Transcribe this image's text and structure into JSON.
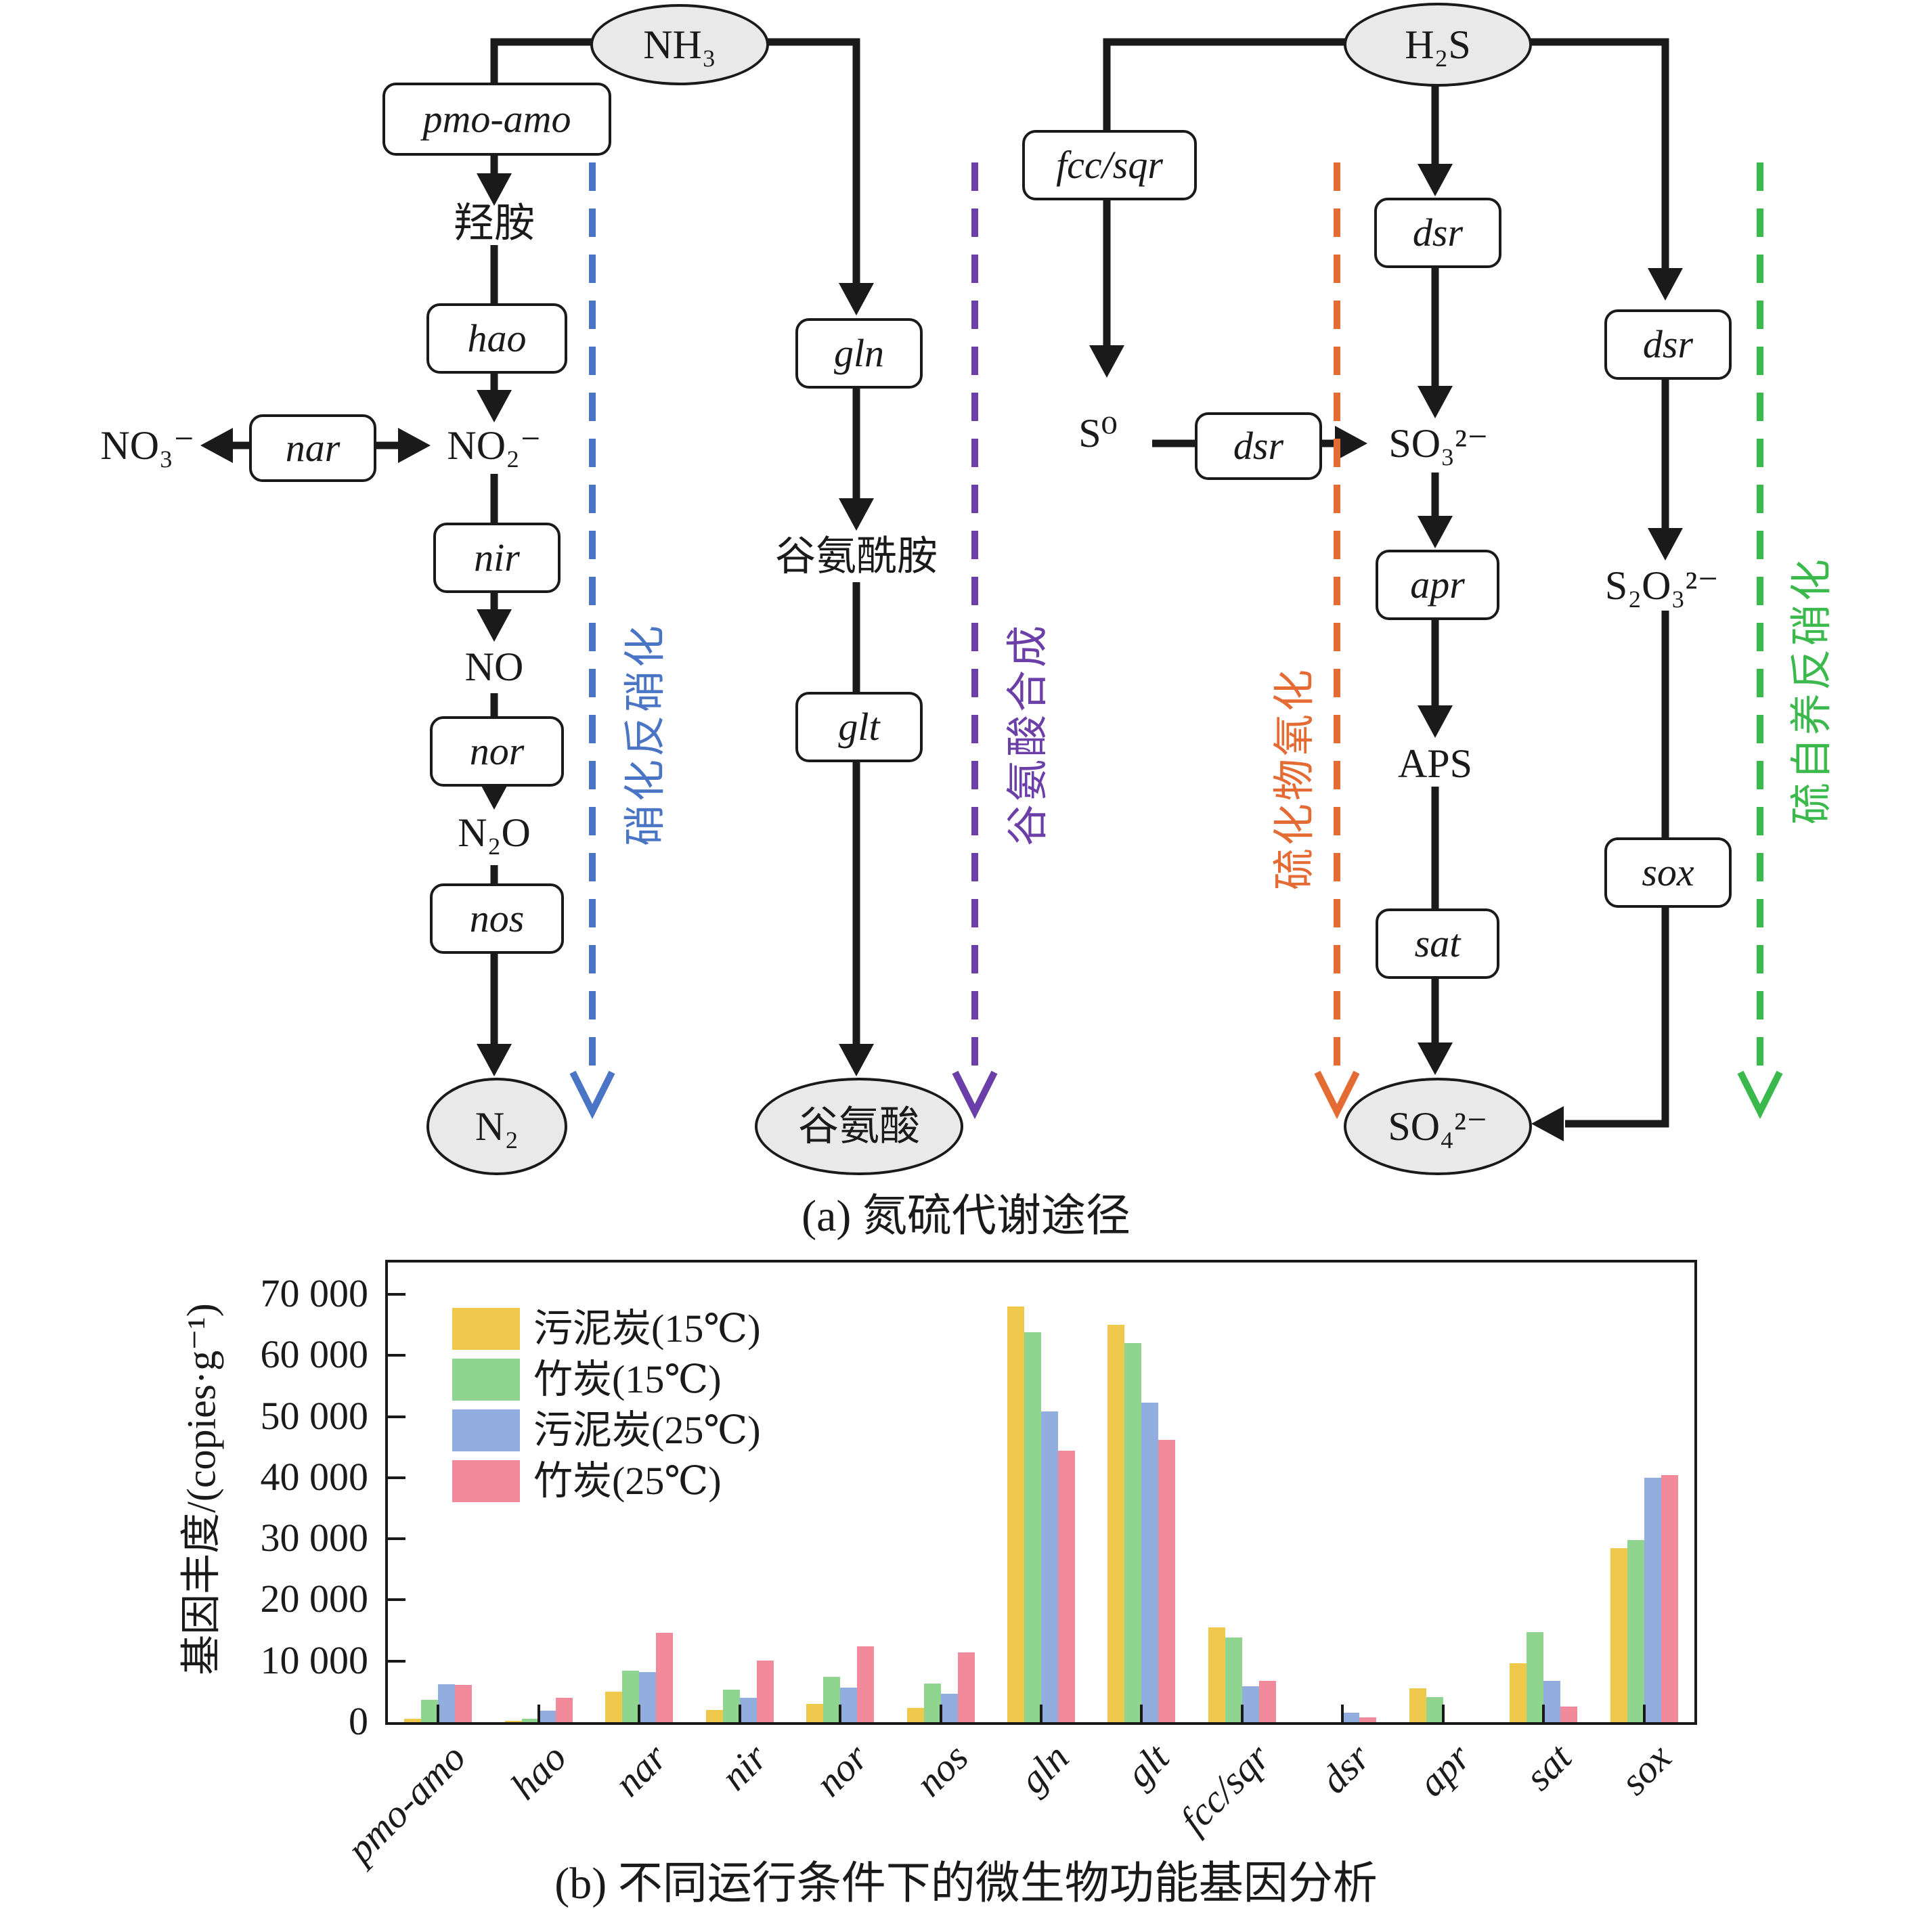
{
  "figure": {
    "panel_a_caption": "(a) 氮硫代谢途径",
    "panel_b_caption": "(b) 不同运行条件下的微生物功能基因分析"
  },
  "diagram": {
    "nodes": {
      "nh3": "NH₃",
      "h2s": "H₂S",
      "pmo_amo": "pmo-amo",
      "hydroxylamine": "羟胺",
      "hao": "hao",
      "no3": "NO₃⁻",
      "nar": "nar",
      "no2": "NO₂⁻",
      "nir": "nir",
      "no": "NO",
      "nor": "nor",
      "n2o": "N₂O",
      "nos": "nos",
      "n2": "N₂",
      "gln": "gln",
      "glutamine": "谷氨酰胺",
      "glt": "glt",
      "glutamate": "谷氨酸",
      "fcc_sqr": "fcc/sqr",
      "s0": "S⁰",
      "dsr": "dsr",
      "so3": "SO₃²⁻",
      "apr": "apr",
      "aps": "APS",
      "sat": "sat",
      "so4": "SO₄²⁻",
      "s2o3": "S₂O₃²⁻",
      "sox": "sox"
    },
    "pathways": [
      {
        "label": "硝化反硝化",
        "color": "#4A74C4"
      },
      {
        "label": "谷氨酸合成",
        "color": "#6B3EA8"
      },
      {
        "label": "硫化物氧化",
        "color": "#E56B35"
      },
      {
        "label": "硫自养反硝化",
        "color": "#3CB94D"
      }
    ]
  },
  "chart_data": {
    "type": "bar",
    "title": "",
    "xlabel": "",
    "ylabel": "基因丰度/(copies·g⁻¹)",
    "ylim": [
      0,
      70000
    ],
    "yticks": [
      0,
      10000,
      20000,
      30000,
      40000,
      50000,
      60000,
      70000
    ],
    "ytick_labels": [
      "0",
      "10 000",
      "20 000",
      "30 000",
      "40 000",
      "50 000",
      "60 000",
      "70 000"
    ],
    "categories": [
      "pmo-amo",
      "hao",
      "nar",
      "nir",
      "nor",
      "nos",
      "gln",
      "glt",
      "fcc/sqr",
      "dsr",
      "apr",
      "sat",
      "sox"
    ],
    "series": [
      {
        "name": "污泥炭(15℃)",
        "color": "#EFC94C",
        "values": [
          500,
          200,
          5000,
          2000,
          3000,
          2300,
          68000,
          65000,
          15500,
          0,
          5500,
          9600,
          28500
        ]
      },
      {
        "name": "竹炭(15℃)",
        "color": "#8FD48F",
        "values": [
          3700,
          550,
          8400,
          5300,
          7400,
          6300,
          63800,
          62000,
          13900,
          0,
          4100,
          14700,
          29800
        ]
      },
      {
        "name": "污泥炭(25℃)",
        "color": "#92AEDF",
        "values": [
          6200,
          1900,
          8200,
          4000,
          5600,
          4700,
          50800,
          52300,
          5900,
          1500,
          0,
          6800,
          40000
        ]
      },
      {
        "name": "竹炭(25℃)",
        "color": "#F18B9B",
        "values": [
          6100,
          4000,
          14600,
          10100,
          12400,
          11400,
          44400,
          46200,
          6800,
          800,
          0,
          2600,
          40400
        ]
      }
    ],
    "legend_position": "top-left",
    "grid": false
  }
}
